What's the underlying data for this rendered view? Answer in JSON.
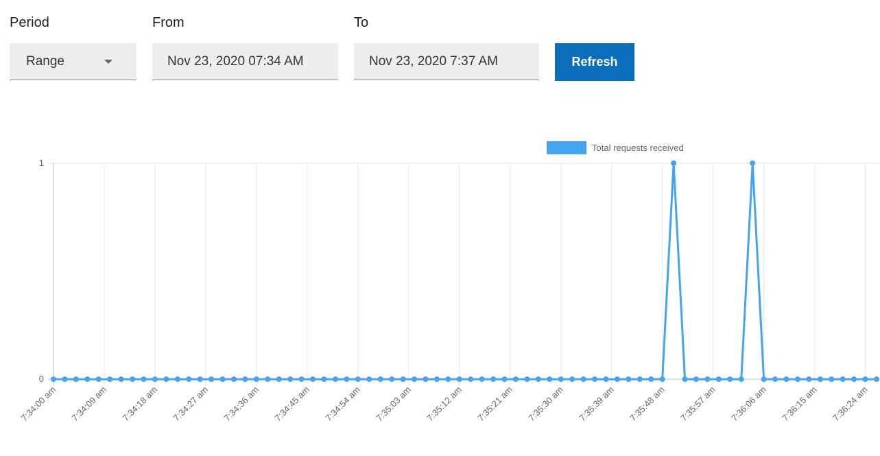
{
  "form": {
    "period": {
      "label": "Period",
      "value": "Range"
    },
    "from": {
      "label": "From",
      "value": "Nov 23, 2020 07:34 AM"
    },
    "to": {
      "label": "To",
      "value": "Nov 23, 2020 7:37 AM"
    },
    "button": "Refresh"
  },
  "chart_data": {
    "type": "line",
    "x": [
      27240,
      27242,
      27244,
      27246,
      27248,
      27250,
      27252,
      27254,
      27256,
      27258,
      27260,
      27262,
      27264,
      27266,
      27268,
      27270,
      27272,
      27274,
      27276,
      27278,
      27280,
      27282,
      27284,
      27286,
      27288,
      27290,
      27292,
      27294,
      27296,
      27298,
      27300,
      27302,
      27304,
      27306,
      27308,
      27310,
      27312,
      27314,
      27316,
      27318,
      27320,
      27322,
      27324,
      27326,
      27328,
      27330,
      27332,
      27334,
      27336,
      27338,
      27340,
      27342,
      27344,
      27346,
      27348,
      27350,
      27352,
      27354,
      27356,
      27358,
      27360,
      27362,
      27364,
      27366,
      27368,
      27370,
      27372,
      27374,
      27376,
      27378,
      27380,
      27382,
      27384,
      27386
    ],
    "series": [
      {
        "name": "Total requests received",
        "color": "#44a4f2",
        "values": [
          0,
          0,
          0,
          0,
          0,
          0,
          0,
          0,
          0,
          0,
          0,
          0,
          0,
          0,
          0,
          0,
          0,
          0,
          0,
          0,
          0,
          0,
          0,
          0,
          0,
          0,
          0,
          0,
          0,
          0,
          0,
          0,
          0,
          0,
          0,
          0,
          0,
          0,
          0,
          0,
          0,
          0,
          0,
          0,
          0,
          0,
          0,
          0,
          0,
          0,
          0,
          0,
          0,
          0,
          0,
          1,
          0,
          0,
          0,
          0,
          0,
          0,
          1,
          0,
          0,
          0,
          0,
          0,
          0,
          0,
          0,
          0,
          0,
          0
        ]
      }
    ],
    "xlim": [
      27240,
      27386
    ],
    "xticks": [
      {
        "value": 27240,
        "label": "7:34:00 am"
      },
      {
        "value": 27249,
        "label": "7:34:09 am"
      },
      {
        "value": 27258,
        "label": "7:34:18 am"
      },
      {
        "value": 27267,
        "label": "7:34:27 am"
      },
      {
        "value": 27276,
        "label": "7:34:36 am"
      },
      {
        "value": 27285,
        "label": "7:34:45 am"
      },
      {
        "value": 27294,
        "label": "7:34:54 am"
      },
      {
        "value": 27303,
        "label": "7:35:03 am"
      },
      {
        "value": 27312,
        "label": "7:35:12 am"
      },
      {
        "value": 27321,
        "label": "7:35:21 am"
      },
      {
        "value": 27330,
        "label": "7:35:30 am"
      },
      {
        "value": 27339,
        "label": "7:35:39 am"
      },
      {
        "value": 27348,
        "label": "7:35:48 am"
      },
      {
        "value": 27357,
        "label": "7:35:57 am"
      },
      {
        "value": 27366,
        "label": "7:36:06 am"
      },
      {
        "value": 27375,
        "label": "7:36:15 am"
      },
      {
        "value": 27384,
        "label": "7:36:24 am"
      }
    ],
    "ylim": [
      0,
      1
    ],
    "yticks": [
      0,
      1
    ],
    "grid": true,
    "legend": "top"
  }
}
